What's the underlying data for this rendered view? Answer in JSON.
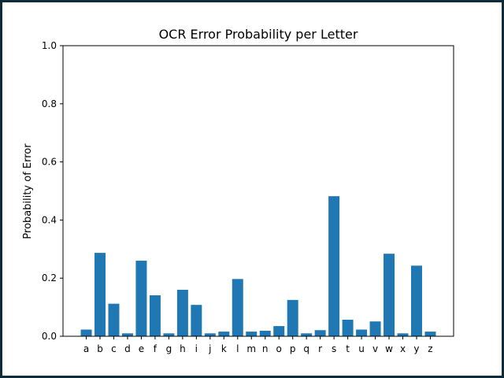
{
  "chart_data": {
    "type": "bar",
    "title": "OCR Error Probability per Letter",
    "xlabel": "",
    "ylabel": "Probability of Error",
    "ylim": [
      0,
      1.0
    ],
    "yticks": [
      "0.0",
      "0.2",
      "0.4",
      "0.6",
      "0.8",
      "1.0"
    ],
    "grid": false,
    "bar_color": "#1f77b4",
    "categories": [
      "a",
      "b",
      "c",
      "d",
      "e",
      "f",
      "g",
      "h",
      "i",
      "j",
      "k",
      "l",
      "m",
      "n",
      "o",
      "p",
      "q",
      "r",
      "s",
      "t",
      "u",
      "v",
      "w",
      "x",
      "y",
      "z"
    ],
    "values": [
      0.023,
      0.287,
      0.112,
      0.01,
      0.26,
      0.141,
      0.01,
      0.16,
      0.108,
      0.01,
      0.016,
      0.197,
      0.016,
      0.019,
      0.035,
      0.125,
      0.01,
      0.021,
      0.482,
      0.057,
      0.023,
      0.051,
      0.284,
      0.01,
      0.243,
      0.016
    ]
  }
}
